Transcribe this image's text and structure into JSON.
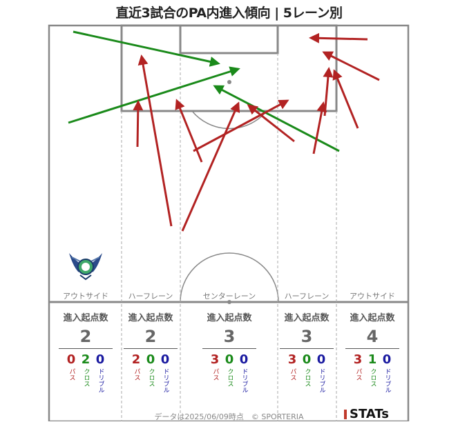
{
  "title": "直近3試合のPA内進入傾向 | 5レーン別",
  "lanes": [
    {
      "label": "アウトサイド",
      "stats_head": "進入起点数",
      "total": "2",
      "pass": "0",
      "cross": "2",
      "dribble": "0"
    },
    {
      "label": "ハーフレーン",
      "stats_head": "進入起点数",
      "total": "2",
      "pass": "2",
      "cross": "0",
      "dribble": "0"
    },
    {
      "label": "センターレーン",
      "stats_head": "進入起点数",
      "total": "3",
      "pass": "3",
      "cross": "0",
      "dribble": "0"
    },
    {
      "label": "ハーフレーン",
      "stats_head": "進入起点数",
      "total": "3",
      "pass": "3",
      "cross": "0",
      "dribble": "0"
    },
    {
      "label": "アウトサイド",
      "stats_head": "進入起点数",
      "total": "4",
      "pass": "3",
      "cross": "1",
      "dribble": "0"
    }
  ],
  "categories": {
    "pass": "パス",
    "cross": "クロス",
    "dribble": "ドリブル"
  },
  "colors": {
    "pass": "#b22222",
    "cross": "#1a8a1a",
    "dribble": "#1a1aa0",
    "pitch_line": "#888888"
  },
  "footer": "データは2025/06/09時点　© SPORTERIA",
  "brand": "STATs",
  "crest_icon": "team-crest-icon"
}
